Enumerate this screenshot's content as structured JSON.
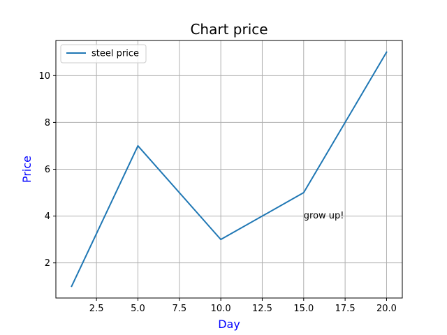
{
  "chart_data": {
    "type": "line",
    "title": "Chart price",
    "xlabel": "Day",
    "ylabel": "Price",
    "xlim": [
      0.05,
      20.95
    ],
    "ylim": [
      0.5,
      11.5
    ],
    "xticks": [
      2.5,
      5.0,
      7.5,
      10.0,
      12.5,
      15.0,
      17.5,
      20.0
    ],
    "xtick_labels": [
      "2.5",
      "5.0",
      "7.5",
      "10.0",
      "12.5",
      "15.0",
      "17.5",
      "20.0"
    ],
    "yticks": [
      2,
      4,
      6,
      8,
      10
    ],
    "ytick_labels": [
      "2",
      "4",
      "6",
      "8",
      "10"
    ],
    "grid": true,
    "legend_position": "upper-left",
    "series": [
      {
        "name": "steel price",
        "color": "#1f77b4",
        "x": [
          1,
          5,
          10,
          15,
          20
        ],
        "y": [
          1,
          7,
          3,
          5,
          11
        ]
      }
    ],
    "annotations": [
      {
        "text": "grow up!",
        "x": 15,
        "y": 4
      }
    ],
    "colors": {
      "axis_label": "#0000ff",
      "grid": "#b0b0b0",
      "legend_border": "#cccccc"
    }
  }
}
